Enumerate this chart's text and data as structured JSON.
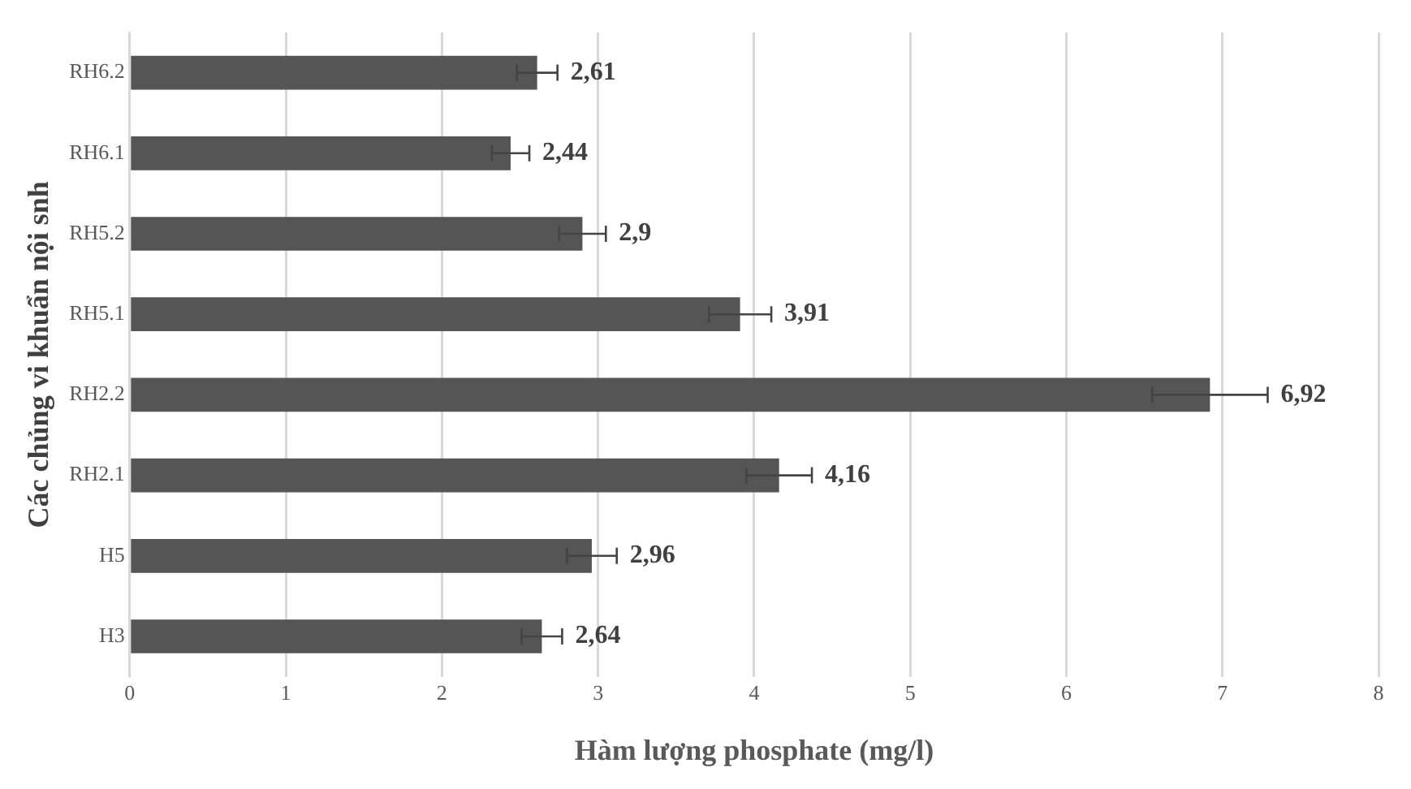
{
  "chart_data": {
    "type": "bar",
    "orientation": "horizontal",
    "xlabel": "Hàm lượng phosphate (mg/l)",
    "ylabel": "Các chủng vi khuẩn nội snh",
    "categories": [
      "RH6.2",
      "RH6.1",
      "RH5.2",
      "RH5.1",
      "RH2.2",
      "RH2.1",
      "H5",
      "H3"
    ],
    "values": [
      2.61,
      2.44,
      2.9,
      3.91,
      6.92,
      4.16,
      2.96,
      2.64
    ],
    "errors": [
      0.13,
      0.12,
      0.15,
      0.2,
      0.37,
      0.21,
      0.16,
      0.13
    ],
    "value_labels": [
      "2,61",
      "2,44",
      "2,9",
      "3,91",
      "6,92",
      "4,16",
      "2,96",
      "2,64"
    ],
    "color": "#555555",
    "xlim": [
      0,
      8
    ],
    "xticks": [
      0,
      1,
      2,
      3,
      4,
      5,
      6,
      7,
      8
    ],
    "grid": "x",
    "legend": false
  }
}
